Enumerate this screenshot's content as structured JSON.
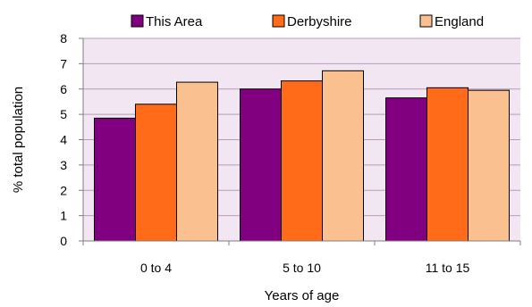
{
  "chart_data": {
    "type": "bar",
    "categories": [
      "0 to 4",
      "5 to 10",
      "11 to 15"
    ],
    "series": [
      {
        "name": "This Area",
        "values": [
          4.85,
          6.0,
          5.65
        ],
        "color": "#800080"
      },
      {
        "name": "Derbyshire",
        "values": [
          5.4,
          6.32,
          6.05
        ],
        "color": "#ff6b18"
      },
      {
        "name": "England",
        "values": [
          6.27,
          6.72,
          5.95
        ],
        "color": "#fac090"
      }
    ],
    "title": "",
    "xlabel": "Years of age",
    "ylabel": "% total population",
    "ylim": [
      0,
      8
    ],
    "yticks": [
      "0",
      "1",
      "2",
      "3",
      "4",
      "5",
      "6",
      "7",
      "8"
    ],
    "grid": true,
    "legend_position": "top",
    "plot_background": "#f2e6f2",
    "grid_color": "#b89ab8"
  }
}
